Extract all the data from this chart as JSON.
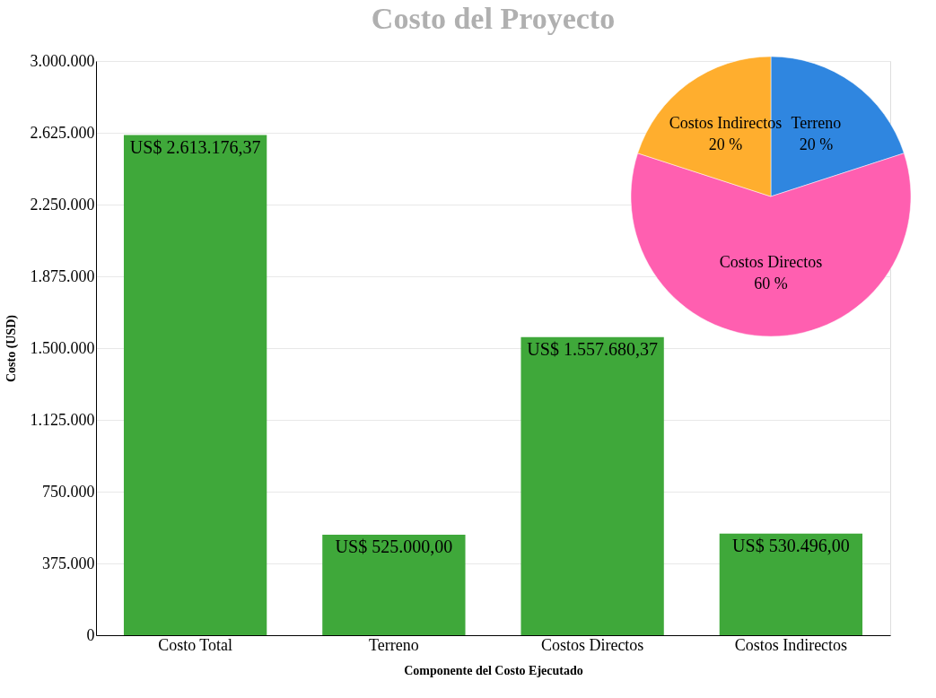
{
  "chart_data": [
    {
      "type": "bar",
      "title": "Costo del Proyecto",
      "xlabel": "Componente del Costo Ejecutado",
      "ylabel": "Costo (USD)",
      "categories": [
        "Costo Total",
        "Terreno",
        "Costos Directos",
        "Costos Indirectos"
      ],
      "values": [
        2613176.37,
        525000,
        1557680.37,
        530496
      ],
      "color": "#3fa83a",
      "value_labels": [
        "US$ 2.613.176,37",
        "US$ 525.000,00",
        "US$ 1.557.680,37",
        "US$ 530.496,00"
      ],
      "ylim": [
        0,
        3000000
      ],
      "yticks": [
        0,
        {
          "value": 375000,
          "label": "375.000"
        },
        {
          "value": 750000,
          "label": "750.000"
        },
        {
          "value": 1125000,
          "label": "1.125.000"
        },
        {
          "value": 1500000,
          "label": "1.500.000"
        },
        {
          "value": 1875000,
          "label": "1.875.000"
        },
        {
          "value": 2250000,
          "label": "2.250.000"
        },
        {
          "value": 2625000,
          "label": "2.625.000"
        },
        {
          "value": 3000000,
          "label": "3.000.000"
        }
      ],
      "grid": "y"
    },
    {
      "type": "pie",
      "categories": [
        "Terreno",
        "Costos Directos",
        "Costos Indirectos"
      ],
      "values": [
        20,
        60,
        20
      ],
      "colors": [
        "#2f86e0",
        "#ff5fb0",
        "#ffae2e"
      ],
      "value_labels": [
        "20 %",
        "60 %",
        "20 %"
      ]
    }
  ]
}
